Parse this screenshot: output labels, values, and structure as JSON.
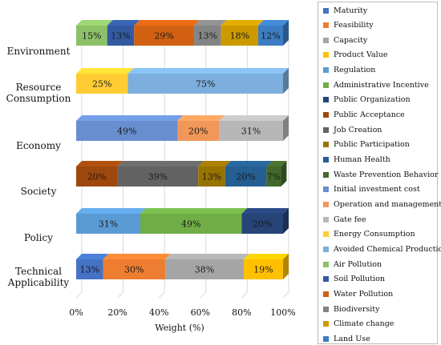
{
  "chart_data": {
    "type": "bar",
    "orientation": "horizontal",
    "stacked": "percent",
    "style": "3d",
    "categories": [
      "Environment",
      "Resource Consumption",
      "Economy",
      "Society",
      "Policy",
      "Technical Applicability"
    ],
    "category_lines": [
      [
        "Environment"
      ],
      [
        "Resource",
        "Consumption"
      ],
      [
        "Economy"
      ],
      [
        "Society"
      ],
      [
        "Policy"
      ],
      [
        "Technical",
        "Applicability"
      ]
    ],
    "xlabel": "Weight (%)",
    "xlim": [
      0,
      100
    ],
    "xticks": [
      "0%",
      "20%",
      "40%",
      "60%",
      "80%",
      "100%"
    ],
    "grid": true,
    "legend_position": "right",
    "series": [
      {
        "name": "Maturity",
        "color": "#4472c4",
        "values": [
          null,
          null,
          null,
          null,
          null,
          13
        ]
      },
      {
        "name": "Feasibility",
        "color": "#ed7d31",
        "values": [
          null,
          null,
          null,
          null,
          null,
          30
        ]
      },
      {
        "name": "Capacity",
        "color": "#a5a5a5",
        "values": [
          null,
          null,
          null,
          null,
          null,
          38
        ]
      },
      {
        "name": "Product Value",
        "color": "#ffc000",
        "values": [
          null,
          null,
          null,
          null,
          null,
          19
        ]
      },
      {
        "name": "Regulation",
        "color": "#5b9bd5",
        "values": [
          null,
          null,
          null,
          null,
          31,
          null
        ]
      },
      {
        "name": "Administrative Incentive",
        "color": "#70ad47",
        "values": [
          null,
          null,
          null,
          null,
          49,
          null
        ]
      },
      {
        "name": "Public Organization",
        "color": "#264478",
        "values": [
          null,
          null,
          null,
          null,
          20,
          null
        ]
      },
      {
        "name": "Public Acceptance",
        "color": "#9e480e",
        "values": [
          null,
          null,
          null,
          20,
          null,
          null
        ]
      },
      {
        "name": "Job Creation",
        "color": "#636363",
        "values": [
          null,
          null,
          null,
          39,
          null,
          null
        ]
      },
      {
        "name": "Public Participation",
        "color": "#997300",
        "values": [
          null,
          null,
          null,
          13,
          null,
          null
        ]
      },
      {
        "name": "Human Health",
        "color": "#255e91",
        "values": [
          null,
          null,
          null,
          20,
          null,
          null
        ]
      },
      {
        "name": "Waste Prevention Behavior",
        "color": "#43682b",
        "values": [
          null,
          null,
          null,
          7,
          null,
          null
        ]
      },
      {
        "name": "Initial investment cost",
        "color": "#698ed0",
        "values": [
          null,
          null,
          49,
          null,
          null,
          null
        ]
      },
      {
        "name": "Operation and management Cost",
        "color": "#f1975a",
        "values": [
          null,
          null,
          20,
          null,
          null,
          null
        ]
      },
      {
        "name": "Gate fee",
        "color": "#b7b7b7",
        "values": [
          null,
          null,
          31,
          null,
          null,
          null
        ]
      },
      {
        "name": "Energy Consumption",
        "color": "#ffcd33",
        "values": [
          null,
          25,
          null,
          null,
          null,
          null
        ]
      },
      {
        "name": "Avoided Chemical Production",
        "color": "#7cafdd",
        "values": [
          null,
          75,
          null,
          null,
          null,
          null
        ]
      },
      {
        "name": "Air Pollution",
        "color": "#8cc168",
        "values": [
          15,
          null,
          null,
          null,
          null,
          null
        ]
      },
      {
        "name": "Soil Pollution",
        "color": "#335aa1",
        "values": [
          13,
          null,
          null,
          null,
          null,
          null
        ]
      },
      {
        "name": "Water Pollution",
        "color": "#d26012",
        "values": [
          29,
          null,
          null,
          null,
          null,
          null
        ]
      },
      {
        "name": "Biodiversity",
        "color": "#848484",
        "values": [
          13,
          null,
          null,
          null,
          null,
          null
        ]
      },
      {
        "name": "Climate change",
        "color": "#cc9a00",
        "values": [
          18,
          null,
          null,
          null,
          null,
          null
        ]
      },
      {
        "name": "Land Use",
        "color": "#3c7dc4",
        "values": [
          12,
          null,
          null,
          null,
          null,
          null
        ]
      }
    ]
  }
}
